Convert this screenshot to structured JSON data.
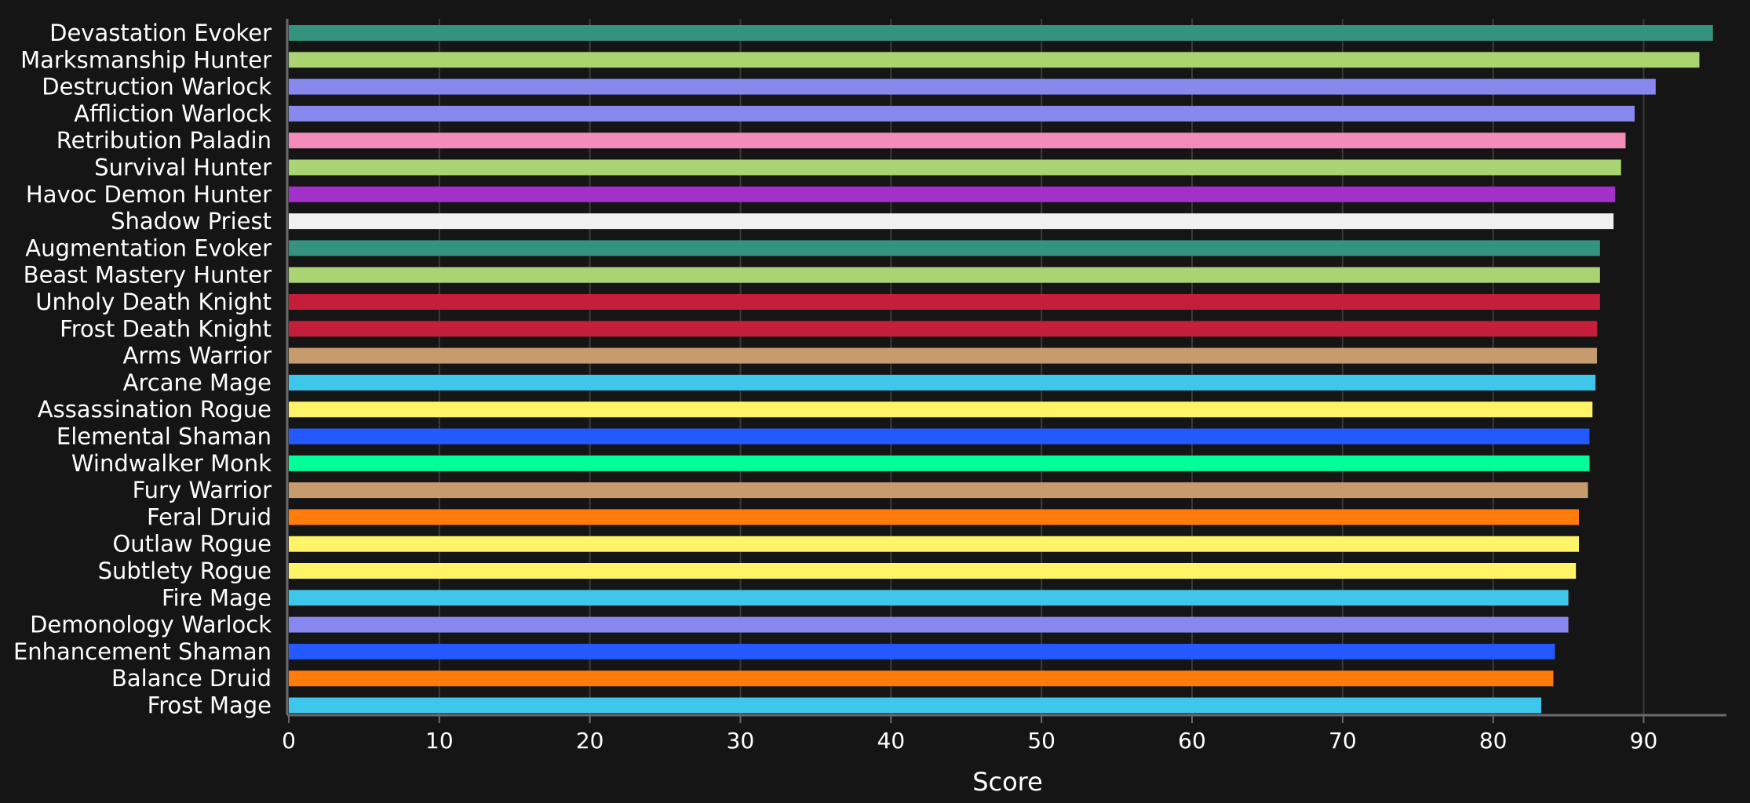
{
  "chart_data": {
    "type": "bar",
    "orientation": "horizontal",
    "categories": [
      "Devastation Evoker",
      "Marksmanship Hunter",
      "Destruction Warlock",
      "Affliction Warlock",
      "Retribution Paladin",
      "Survival Hunter",
      "Havoc Demon Hunter",
      "Shadow Priest",
      "Augmentation Evoker",
      "Beast Mastery Hunter",
      "Unholy Death Knight",
      "Frost Death Knight",
      "Arms Warrior",
      "Arcane Mage",
      "Assassination Rogue",
      "Elemental Shaman",
      "Windwalker Monk",
      "Fury Warrior",
      "Feral Druid",
      "Outlaw Rogue",
      "Subtlety Rogue",
      "Fire Mage",
      "Demonology Warlock",
      "Enhancement Shaman",
      "Balance Druid",
      "Frost Mage"
    ],
    "values": [
      94.6,
      93.7,
      90.8,
      89.4,
      88.8,
      88.5,
      88.1,
      88.0,
      87.1,
      87.1,
      87.1,
      86.9,
      86.9,
      86.8,
      86.6,
      86.4,
      86.4,
      86.3,
      85.7,
      85.7,
      85.5,
      85.0,
      85.0,
      84.1,
      84.0,
      83.2
    ],
    "colors": [
      "#33937f",
      "#aad372",
      "#8788ee",
      "#8788ee",
      "#f48cba",
      "#aad372",
      "#a330c9",
      "#f0f0f0",
      "#33937f",
      "#aad372",
      "#c41e3a",
      "#c41e3a",
      "#c69b6d",
      "#3fc7eb",
      "#fff468",
      "#2459ff",
      "#00ff98",
      "#c69b6d",
      "#ff7c0a",
      "#fff468",
      "#fff468",
      "#3fc7eb",
      "#8788ee",
      "#2459ff",
      "#ff7c0a",
      "#3fc7eb"
    ],
    "xlabel": "Score",
    "ylabel": "",
    "xlim": [
      0,
      95.5
    ],
    "xticks": [
      0,
      10,
      20,
      30,
      40,
      50,
      60,
      70,
      80,
      90
    ],
    "grid": "vertical",
    "background": "#151515"
  }
}
